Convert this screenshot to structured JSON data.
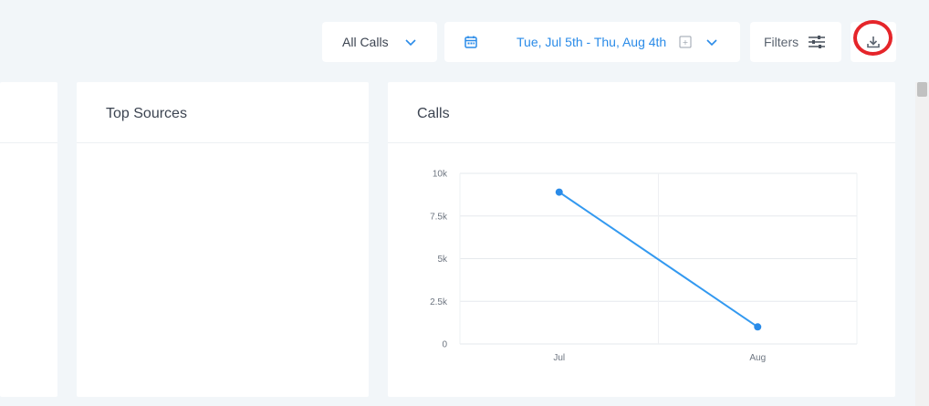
{
  "toolbar": {
    "calls_filter": {
      "label": "All Calls",
      "chevron_icon": "chevron-down-icon"
    },
    "date_range": {
      "calendar_icon": "calendar-icon",
      "label": "Tue, Jul 5th - Thu, Aug 4th",
      "badge_icon": "image-placeholder-icon",
      "chevron_icon": "chevron-down-icon"
    },
    "filters": {
      "label": "Filters",
      "icon": "sliders-icon"
    },
    "download": {
      "icon": "download-icon"
    }
  },
  "cards": {
    "sources": {
      "title": "Top Sources"
    },
    "calls": {
      "title": "Calls"
    }
  },
  "colors": {
    "accent": "#2a8be8",
    "line": "#3399f0",
    "highlight": "#e5252a",
    "background": "#f2f6f9"
  },
  "chart_data": {
    "type": "line",
    "title": "Calls",
    "categories": [
      "Jul",
      "Aug"
    ],
    "series": [
      {
        "values": [
          8900,
          1000
        ]
      }
    ],
    "yticks": [
      "0",
      "2.5k",
      "5k",
      "7.5k",
      "10k"
    ],
    "ylim": [
      0,
      10000
    ],
    "grid": true,
    "legend": "none"
  }
}
